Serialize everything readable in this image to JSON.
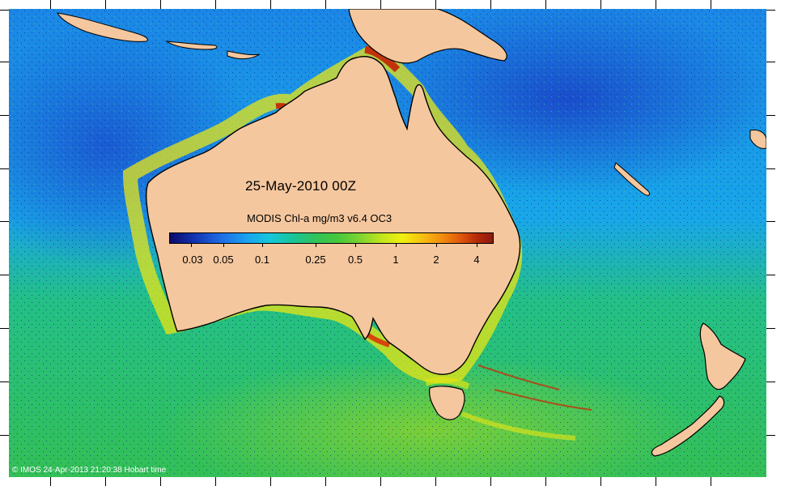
{
  "map": {
    "date_label": "25-May-2010 00Z",
    "colorbar": {
      "title": "MODIS Chl-a mg/m3 v6.4 OC3",
      "tick_labels": [
        "0.03",
        "0.05",
        "0.1",
        "0.25",
        "0.5",
        "1",
        "2",
        "4"
      ],
      "scale": "log"
    },
    "credit": "© IMOS 24-Apr-2013 21:20:38 Hobart time",
    "colors": {
      "land": "#f5c79e",
      "ocean_deep_blue": "#1d53d8",
      "ocean_mid_blue": "#1b8fe8",
      "ocean_cyan": "#17bfd6",
      "ocean_green": "#2fbd5d",
      "high_chl_yellow": "#e9ec12",
      "high_chl_red": "#b8280a"
    }
  }
}
